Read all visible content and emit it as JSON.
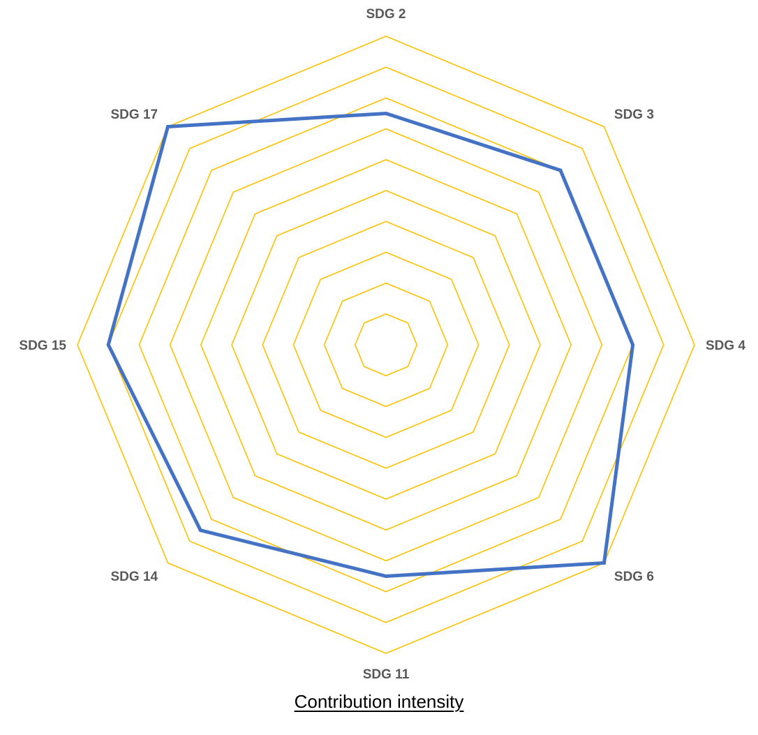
{
  "chart_data": {
    "type": "radar",
    "categories": [
      "SDG 2",
      "SDG 3",
      "SDG 4",
      "SDG 6",
      "SDG 11",
      "SDG 14",
      "SDG 15",
      "SDG 17"
    ],
    "series": [
      {
        "name": "",
        "values": [
          7.5,
          8,
          8,
          10,
          7.5,
          8.5,
          9,
          10
        ]
      }
    ],
    "rlim": [
      0,
      10
    ],
    "grid_rings": 10,
    "grid": true,
    "xlabel": "",
    "title": "",
    "caption": "Contribution intensity",
    "colors": {
      "series": "#4472C4",
      "grid": "#FFC000",
      "label": "#595959"
    }
  }
}
